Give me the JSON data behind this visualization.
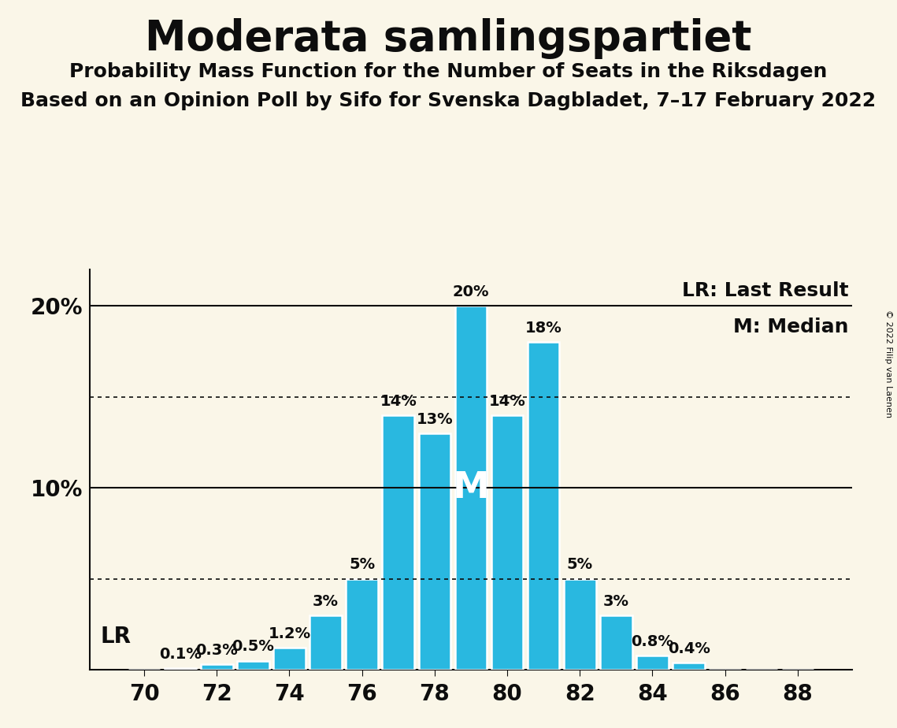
{
  "title": "Moderata samlingspartiet",
  "subtitle1": "Probability Mass Function for the Number of Seats in the Riksdagen",
  "subtitle2": "Based on an Opinion Poll by Sifo for Svenska Dagbladet, 7–17 February 2022",
  "copyright": "© 2022 Filip van Laenen",
  "seats": [
    70,
    71,
    72,
    73,
    74,
    75,
    76,
    77,
    78,
    79,
    80,
    81,
    82,
    83,
    84,
    85,
    86,
    87,
    88
  ],
  "probabilities": [
    0.0,
    0.1,
    0.3,
    0.5,
    1.2,
    3.0,
    5.0,
    14.0,
    13.0,
    20.0,
    14.0,
    18.0,
    5.0,
    3.0,
    0.8,
    0.4,
    0.0,
    0.0,
    0.0
  ],
  "bar_color": "#29b8e0",
  "bar_edge_color": "#ffffff",
  "background_color": "#faf6e8",
  "text_color": "#0d0d0d",
  "median_seat": 79,
  "last_result_seat": 70,
  "ylim": [
    0,
    22
  ],
  "yticks": [
    10,
    20
  ],
  "ytick_labels": [
    "10%",
    "20%"
  ],
  "hlines_solid": [
    10,
    20
  ],
  "hlines_dotted": [
    5,
    15
  ],
  "title_fontsize": 38,
  "subtitle_fontsize": 18,
  "tick_fontsize": 20,
  "bar_label_fontsize": 14,
  "legend_fontsize": 18,
  "median_fontsize": 34
}
